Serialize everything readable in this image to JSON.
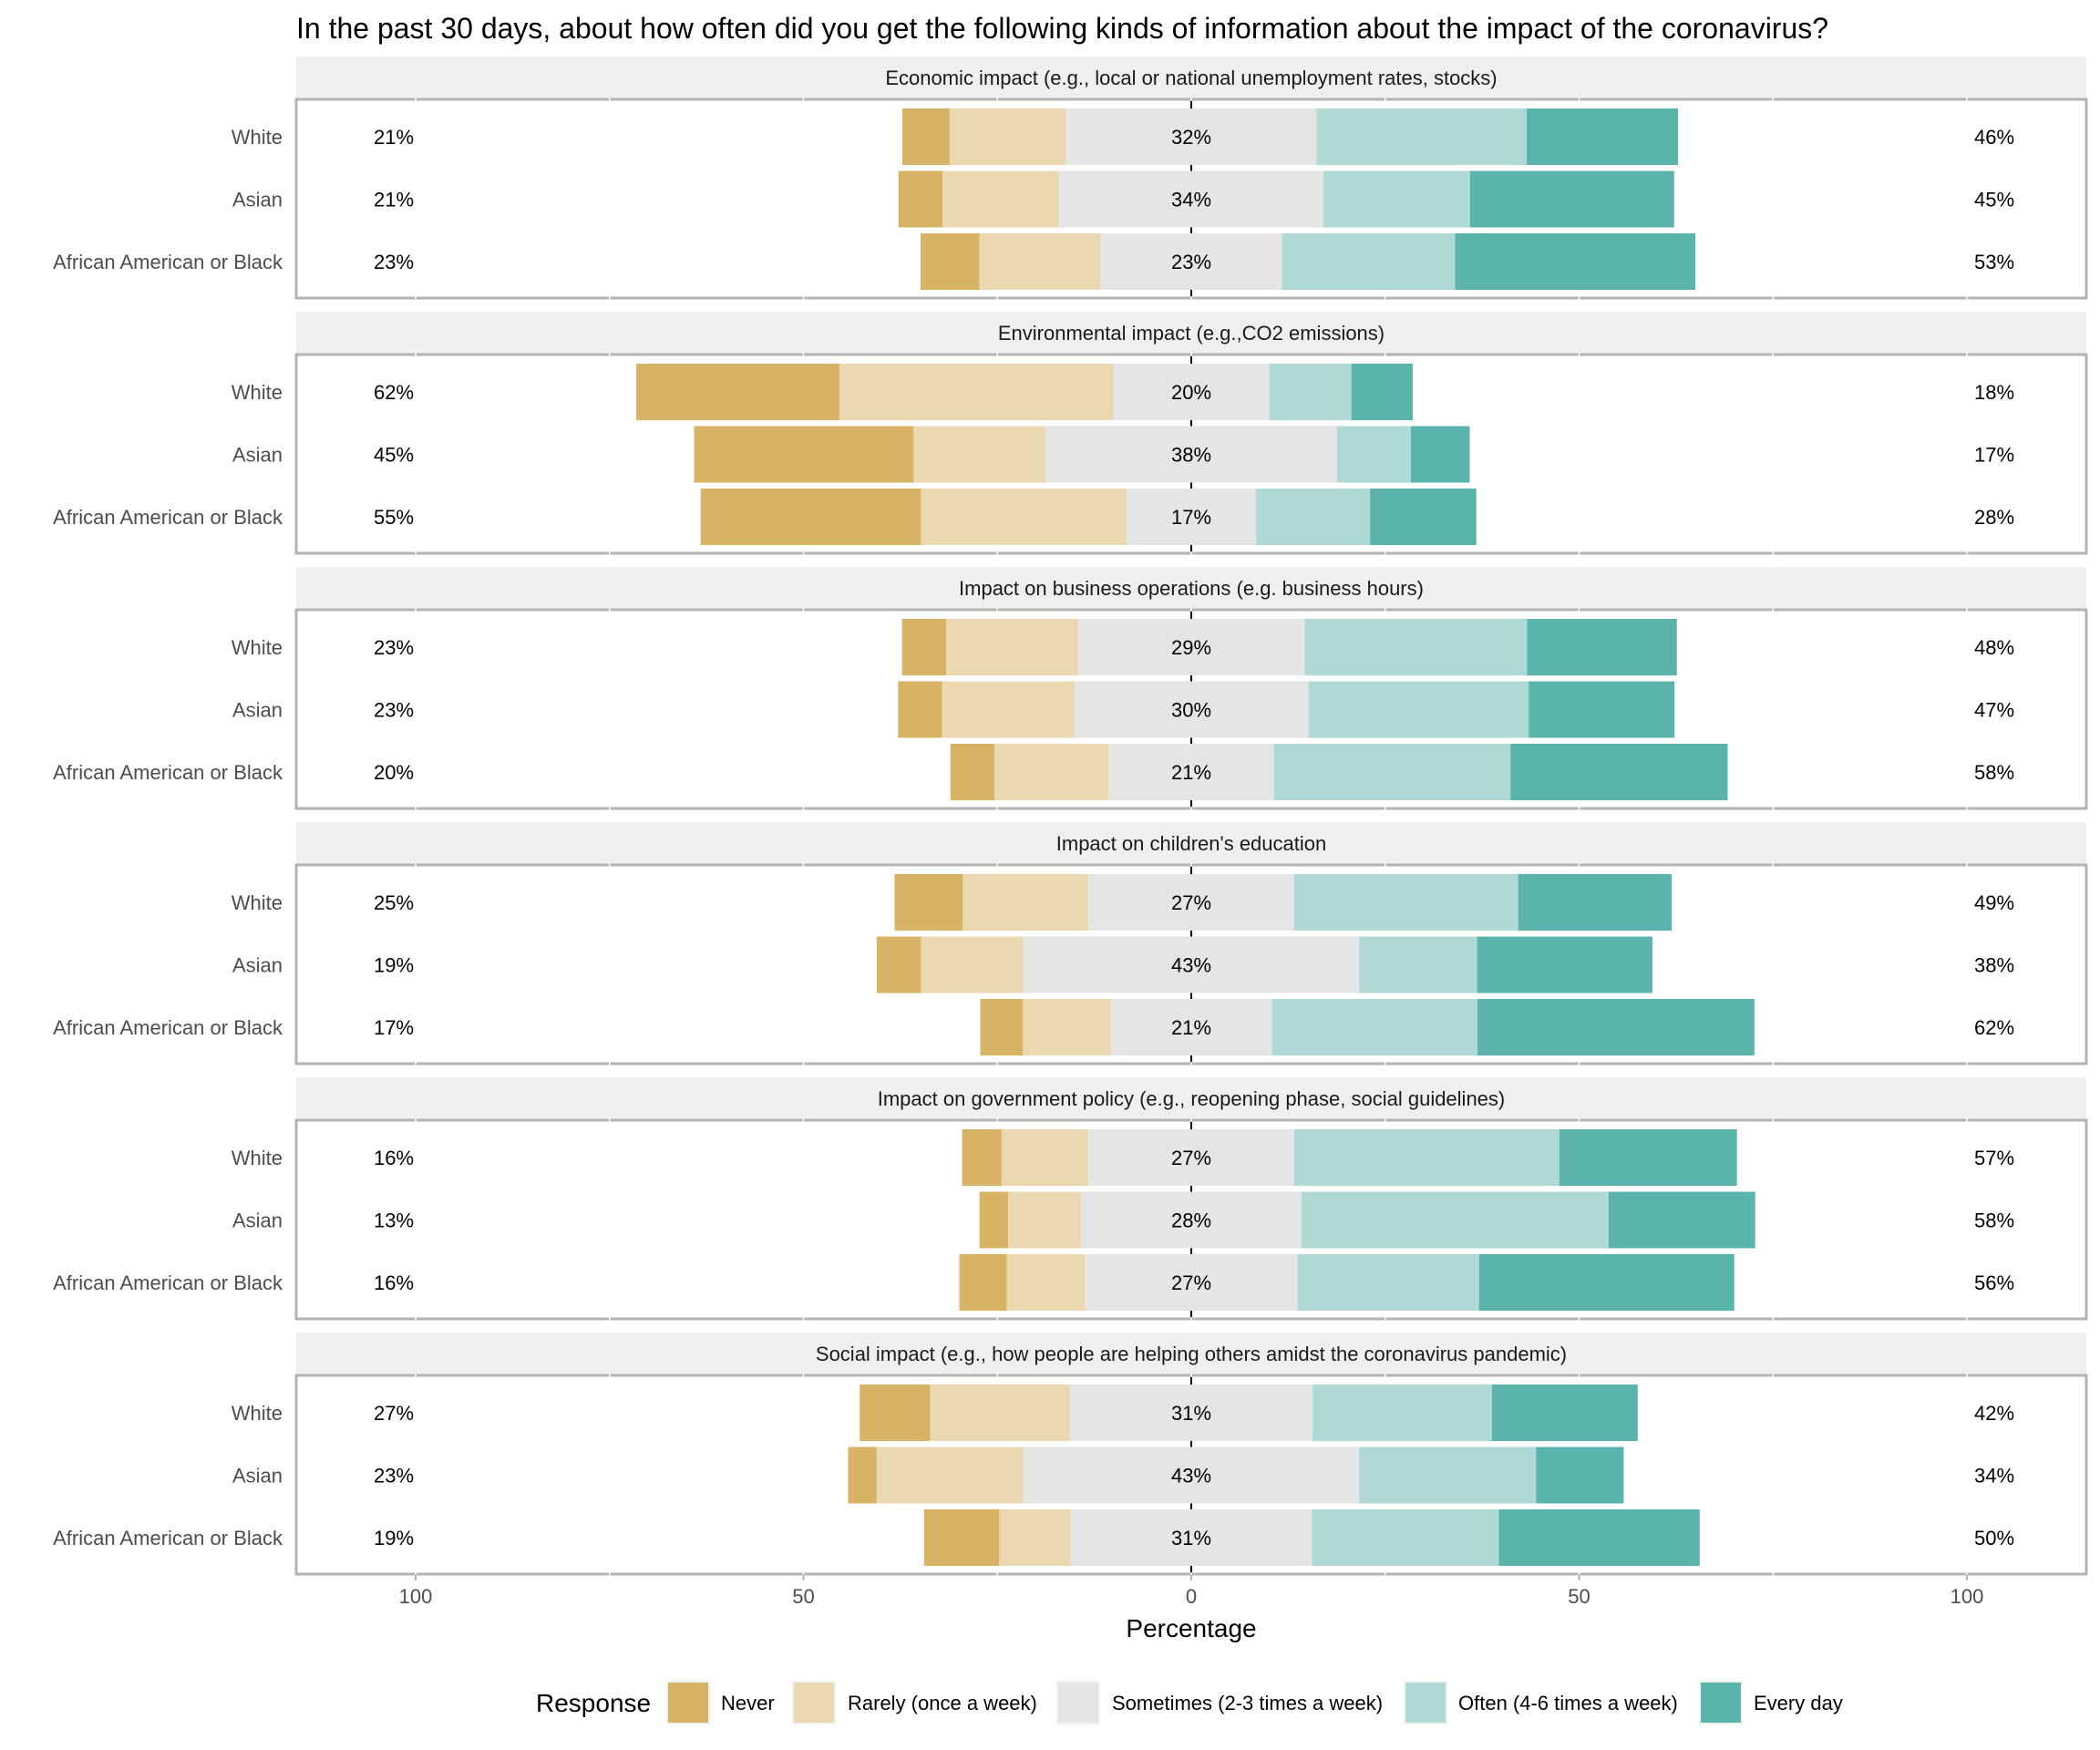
{
  "chart_data": {
    "type": "bar",
    "subtype": "diverging-stacked-horizontal",
    "title": "In the past 30 days, about how often did you get the following kinds of information about the impact of the coronavirus?",
    "xlabel": "Percentage",
    "ylabel": "",
    "xlim": [
      -100,
      100
    ],
    "x_ticks": [
      -100,
      -50,
      0,
      50,
      100
    ],
    "x_tick_labels": [
      "100",
      "50",
      "0",
      "50",
      "100"
    ],
    "grid": false,
    "legend": {
      "title": "Response",
      "position": "bottom"
    },
    "responses": [
      {
        "name": "Never",
        "color": "#D8B365"
      },
      {
        "name": "Rarely (once a week)",
        "color": "#EAD9B0"
      },
      {
        "name": "Sometimes (2-3 times a week)",
        "color": "#E5E5E5"
      },
      {
        "name": "Often (4-6 times a week)",
        "color": "#AED9D5"
      },
      {
        "name": "Every day",
        "color": "#5AB4AB"
      }
    ],
    "groups": [
      "White",
      "Asian",
      "African American or Black"
    ],
    "panels": [
      {
        "title": "Economic impact (e.g., local or national unemployment rates, stocks)",
        "rows": [
          {
            "group": "White",
            "values": [
              6.1,
              15.0,
              32.3,
              27.1,
              19.5
            ],
            "left_label": "21%",
            "center_label": "32%",
            "right_label": "46%"
          },
          {
            "group": "Asian",
            "values": [
              5.7,
              15.0,
              34.1,
              18.9,
              26.3
            ],
            "left_label": "21%",
            "center_label": "34%",
            "right_label": "45%"
          },
          {
            "group": "African American or Black",
            "values": [
              7.6,
              15.6,
              23.4,
              22.3,
              31.0
            ],
            "left_label": "23%",
            "center_label": "23%",
            "right_label": "53%"
          }
        ]
      },
      {
        "title": "Environmental impact (e.g.,CO2 emissions)",
        "rows": [
          {
            "group": "White",
            "values": [
              26.2,
              35.3,
              20.1,
              10.6,
              7.9
            ],
            "left_label": "62%",
            "center_label": "20%",
            "right_label": "18%"
          },
          {
            "group": "Asian",
            "values": [
              28.3,
              17.0,
              37.6,
              9.5,
              7.6
            ],
            "left_label": "45%",
            "center_label": "38%",
            "right_label": "17%"
          },
          {
            "group": "African American or Black",
            "values": [
              28.4,
              26.5,
              16.7,
              14.7,
              13.7
            ],
            "left_label": "55%",
            "center_label": "17%",
            "right_label": "28%"
          }
        ]
      },
      {
        "title": "Impact on business operations (e.g. business hours)",
        "rows": [
          {
            "group": "White",
            "values": [
              5.7,
              17.0,
              29.2,
              28.7,
              19.3
            ],
            "left_label": "23%",
            "center_label": "29%",
            "right_label": "48%"
          },
          {
            "group": "Asian",
            "values": [
              5.7,
              17.0,
              30.2,
              28.4,
              18.8
            ],
            "left_label": "23%",
            "center_label": "30%",
            "right_label": "47%"
          },
          {
            "group": "African American or Black",
            "values": [
              5.7,
              14.7,
              21.3,
              30.5,
              28.0
            ],
            "left_label": "20%",
            "center_label": "21%",
            "right_label": "58%"
          }
        ]
      },
      {
        "title": "Impact on children's education",
        "rows": [
          {
            "group": "White",
            "values": [
              8.8,
              16.2,
              26.5,
              28.9,
              19.8
            ],
            "left_label": "25%",
            "center_label": "27%",
            "right_label": "49%"
          },
          {
            "group": "Asian",
            "values": [
              5.7,
              13.2,
              43.3,
              15.2,
              22.6
            ],
            "left_label": "19%",
            "center_label": "43%",
            "right_label": "38%"
          },
          {
            "group": "African American or Black",
            "values": [
              5.5,
              11.3,
              20.8,
              26.5,
              35.7
            ],
            "left_label": "17%",
            "center_label": "21%",
            "right_label": "62%"
          }
        ]
      },
      {
        "title": "Impact on government policy (e.g., reopening phase, social guidelines)",
        "rows": [
          {
            "group": "White",
            "values": [
              5.1,
              11.2,
              26.5,
              34.2,
              22.9
            ],
            "left_label": "16%",
            "center_label": "27%",
            "right_label": "57%"
          },
          {
            "group": "Asian",
            "values": [
              3.7,
              9.4,
              28.4,
              39.6,
              18.9
            ],
            "left_label": "13%",
            "center_label": "28%",
            "right_label": "58%"
          },
          {
            "group": "African American or Black",
            "values": [
              6.1,
              10.1,
              27.4,
              23.4,
              32.9
            ],
            "left_label": "16%",
            "center_label": "27%",
            "right_label": "56%"
          }
        ]
      },
      {
        "title": "Social impact (e.g., how people are helping others amidst the coronavirus pandemic)",
        "rows": [
          {
            "group": "White",
            "values": [
              9.1,
              18.0,
              31.3,
              23.1,
              18.8
            ],
            "left_label": "27%",
            "center_label": "31%",
            "right_label": "42%"
          },
          {
            "group": "Asian",
            "values": [
              3.7,
              18.9,
              43.3,
              22.8,
              11.3
            ],
            "left_label": "23%",
            "center_label": "43%",
            "right_label": "34%"
          },
          {
            "group": "African American or Black",
            "values": [
              9.7,
              9.2,
              31.1,
              24.1,
              25.9
            ],
            "left_label": "19%",
            "center_label": "31%",
            "right_label": "50%"
          }
        ]
      }
    ]
  }
}
